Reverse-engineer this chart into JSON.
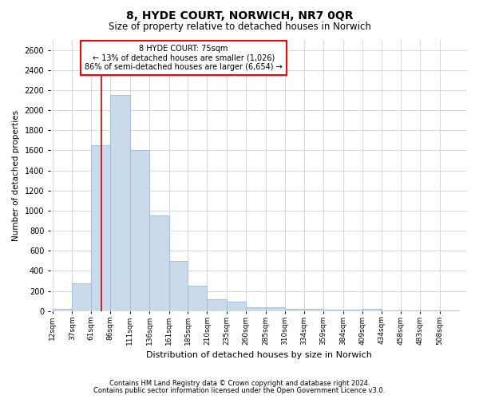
{
  "title": "8, HYDE COURT, NORWICH, NR7 0QR",
  "subtitle": "Size of property relative to detached houses in Norwich",
  "xlabel": "Distribution of detached houses by size in Norwich",
  "ylabel": "Number of detached properties",
  "footnote1": "Contains HM Land Registry data © Crown copyright and database right 2024.",
  "footnote2": "Contains public sector information licensed under the Open Government Licence v3.0.",
  "annotation_title": "8 HYDE COURT: 75sqm",
  "annotation_line1": "← 13% of detached houses are smaller (1,026)",
  "annotation_line2": "86% of semi-detached houses are larger (6,654) →",
  "property_line_x": 75,
  "bar_color": "#c9daea",
  "bar_edgecolor": "#9bbcd4",
  "redline_color": "#cc0000",
  "categories": [
    "12sqm",
    "37sqm",
    "61sqm",
    "86sqm",
    "111sqm",
    "136sqm",
    "161sqm",
    "185sqm",
    "210sqm",
    "235sqm",
    "260sqm",
    "285sqm",
    "310sqm",
    "334sqm",
    "359sqm",
    "384sqm",
    "409sqm",
    "434sqm",
    "458sqm",
    "483sqm",
    "508sqm"
  ],
  "values": [
    25,
    275,
    1650,
    2150,
    1600,
    950,
    500,
    250,
    115,
    90,
    40,
    35,
    25,
    20,
    10,
    10,
    20,
    5,
    5,
    5,
    5
  ],
  "bin_edges": [
    12,
    37,
    61,
    86,
    111,
    136,
    161,
    185,
    210,
    235,
    260,
    285,
    310,
    334,
    359,
    384,
    409,
    434,
    458,
    483,
    508,
    533
  ],
  "ylim": [
    0,
    2700
  ],
  "yticks": [
    0,
    200,
    400,
    600,
    800,
    1000,
    1200,
    1400,
    1600,
    1800,
    2000,
    2200,
    2400,
    2600
  ],
  "background_color": "#ffffff",
  "grid_color": "#d0d0d8"
}
